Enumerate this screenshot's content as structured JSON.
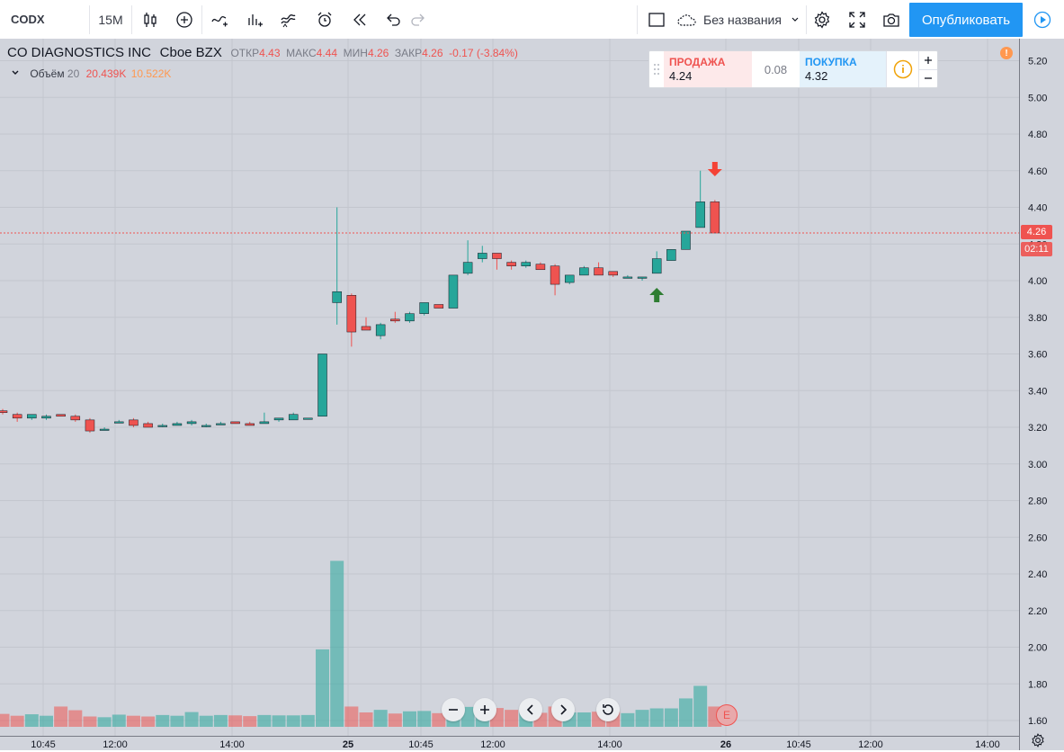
{
  "toolbar": {
    "symbol": "CODX",
    "interval": "15M",
    "layout_name": "Без названия",
    "publish_label": "Опубликовать"
  },
  "legend": {
    "name": "CO DIAGNOSTICS INC",
    "exchange": "Cboe BZX",
    "open_label": "ОТКР",
    "open": "4.43",
    "high_label": "МАКС",
    "high": "4.44",
    "low_label": "МИН",
    "low": "4.26",
    "close_label": "ЗАКР",
    "close": "4.26",
    "change": "-0.17 (-3.84%)",
    "volume_label": "Объём",
    "volume_length": "20",
    "volume_value": "20.439K",
    "volume_ma": "10.522K"
  },
  "trade": {
    "sell_label": "ПРОДАЖА",
    "sell_price": "4.24",
    "spread": "0.08",
    "buy_label": "ПОКУПКА",
    "buy_price": "4.32"
  },
  "price_tags": {
    "last": "4.26",
    "countdown": "02:11"
  },
  "nav_icons": [
    "zoom-out-icon",
    "zoom-in-icon",
    "scroll-left-icon",
    "scroll-right-icon",
    "reset-icon"
  ],
  "earnings_badge": "E",
  "colors": {
    "up": "#26a69a",
    "down": "#ef5350",
    "accent": "#2196f3",
    "bg": "#d1d4dc"
  },
  "chart_data": {
    "type": "candlestick",
    "title": "CO DIAGNOSTICS INC",
    "y_ticks": [
      "5.20",
      "5.00",
      "4.80",
      "4.60",
      "4.40",
      "4.20",
      "4.00",
      "3.80",
      "3.60",
      "3.40",
      "3.20",
      "3.00",
      "2.80",
      "2.60",
      "2.40",
      "2.20",
      "2.00",
      "1.80",
      "1.60"
    ],
    "x_ticks": [
      "10:45",
      "12:00",
      "14:00",
      "25",
      "10:45",
      "12:00",
      "14:00",
      "26",
      "10:45",
      "12:00",
      "14:00"
    ],
    "ylim": [
      1.55,
      5.3
    ],
    "last_price": 4.26,
    "candles": [
      {
        "o": 3.29,
        "h": 3.3,
        "l": 3.27,
        "c": 3.28
      },
      {
        "o": 3.27,
        "h": 3.28,
        "l": 3.23,
        "c": 3.25
      },
      {
        "o": 3.25,
        "h": 3.27,
        "l": 3.24,
        "c": 3.27
      },
      {
        "o": 3.25,
        "h": 3.27,
        "l": 3.24,
        "c": 3.26
      },
      {
        "o": 3.27,
        "h": 3.27,
        "l": 3.26,
        "c": 3.26
      },
      {
        "o": 3.26,
        "h": 3.27,
        "l": 3.23,
        "c": 3.24
      },
      {
        "o": 3.24,
        "h": 3.25,
        "l": 3.17,
        "c": 3.18
      },
      {
        "o": 3.19,
        "h": 3.2,
        "l": 3.19,
        "c": 3.19
      },
      {
        "o": 3.23,
        "h": 3.24,
        "l": 3.23,
        "c": 3.23
      },
      {
        "o": 3.24,
        "h": 3.25,
        "l": 3.2,
        "c": 3.21
      },
      {
        "o": 3.22,
        "h": 3.23,
        "l": 3.2,
        "c": 3.2
      },
      {
        "o": 3.21,
        "h": 3.22,
        "l": 3.2,
        "c": 3.21
      },
      {
        "o": 3.21,
        "h": 3.23,
        "l": 3.21,
        "c": 3.22
      },
      {
        "o": 3.22,
        "h": 3.24,
        "l": 3.21,
        "c": 3.23
      },
      {
        "o": 3.21,
        "h": 3.22,
        "l": 3.2,
        "c": 3.21
      },
      {
        "o": 3.22,
        "h": 3.23,
        "l": 3.22,
        "c": 3.22
      },
      {
        "o": 3.23,
        "h": 3.23,
        "l": 3.22,
        "c": 3.22
      },
      {
        "o": 3.22,
        "h": 3.23,
        "l": 3.21,
        "c": 3.21
      },
      {
        "o": 3.22,
        "h": 3.28,
        "l": 3.22,
        "c": 3.23
      },
      {
        "o": 3.24,
        "h": 3.25,
        "l": 3.23,
        "c": 3.25
      },
      {
        "o": 3.24,
        "h": 3.28,
        "l": 3.24,
        "c": 3.27
      },
      {
        "o": 3.25,
        "h": 3.25,
        "l": 3.25,
        "c": 3.25
      },
      {
        "o": 3.26,
        "h": 3.6,
        "l": 3.26,
        "c": 3.6
      },
      {
        "o": 3.88,
        "h": 4.4,
        "l": 3.76,
        "c": 3.94
      },
      {
        "o": 3.92,
        "h": 3.93,
        "l": 3.64,
        "c": 3.72
      },
      {
        "o": 3.75,
        "h": 3.8,
        "l": 3.73,
        "c": 3.73
      },
      {
        "o": 3.7,
        "h": 3.77,
        "l": 3.68,
        "c": 3.76
      },
      {
        "o": 3.79,
        "h": 3.83,
        "l": 3.77,
        "c": 3.78
      },
      {
        "o": 3.78,
        "h": 3.83,
        "l": 3.77,
        "c": 3.82
      },
      {
        "o": 3.82,
        "h": 3.88,
        "l": 3.81,
        "c": 3.88
      },
      {
        "o": 3.87,
        "h": 3.87,
        "l": 3.85,
        "c": 3.85
      },
      {
        "o": 3.85,
        "h": 4.03,
        "l": 3.85,
        "c": 4.03
      },
      {
        "o": 4.04,
        "h": 4.22,
        "l": 4.03,
        "c": 4.1
      },
      {
        "o": 4.12,
        "h": 4.19,
        "l": 4.1,
        "c": 4.15
      },
      {
        "o": 4.15,
        "h": 4.14,
        "l": 4.06,
        "c": 4.12
      },
      {
        "o": 4.1,
        "h": 4.11,
        "l": 4.06,
        "c": 4.08
      },
      {
        "o": 4.08,
        "h": 4.11,
        "l": 4.07,
        "c": 4.1
      },
      {
        "o": 4.09,
        "h": 4.1,
        "l": 4.06,
        "c": 4.06
      },
      {
        "o": 4.08,
        "h": 4.09,
        "l": 3.92,
        "c": 3.98
      },
      {
        "o": 3.99,
        "h": 4.03,
        "l": 3.98,
        "c": 4.03
      },
      {
        "o": 4.03,
        "h": 4.08,
        "l": 4.03,
        "c": 4.07
      },
      {
        "o": 4.07,
        "h": 4.1,
        "l": 4.03,
        "c": 4.03
      },
      {
        "o": 4.05,
        "h": 4.05,
        "l": 4.02,
        "c": 4.03
      },
      {
        "o": 4.02,
        "h": 4.03,
        "l": 4.02,
        "c": 4.02
      },
      {
        "o": 4.02,
        "h": 4.02,
        "l": 4.0,
        "c": 4.02
      },
      {
        "o": 4.04,
        "h": 4.16,
        "l": 4.04,
        "c": 4.12
      },
      {
        "o": 4.11,
        "h": 4.17,
        "l": 4.11,
        "c": 4.17
      },
      {
        "o": 4.17,
        "h": 4.26,
        "l": 4.17,
        "c": 4.27
      },
      {
        "o": 4.29,
        "h": 4.6,
        "l": 4.29,
        "c": 4.43
      },
      {
        "o": 4.43,
        "h": 4.44,
        "l": 4.26,
        "c": 4.26
      }
    ],
    "volumes": [
      0.35,
      0.3,
      0.34,
      0.3,
      0.55,
      0.45,
      0.28,
      0.26,
      0.33,
      0.3,
      0.28,
      0.32,
      0.3,
      0.4,
      0.3,
      0.32,
      0.31,
      0.29,
      0.32,
      0.31,
      0.31,
      0.32,
      2.1,
      4.5,
      0.55,
      0.39,
      0.46,
      0.36,
      0.42,
      0.43,
      0.37,
      0.55,
      0.54,
      0.43,
      0.51,
      0.46,
      0.52,
      0.38,
      0.55,
      0.39,
      0.39,
      0.41,
      0.41,
      0.37,
      0.46,
      0.5,
      0.5,
      0.77,
      1.11,
      0.55
    ],
    "signals": [
      {
        "type": "buy",
        "index": 45
      },
      {
        "type": "sell",
        "index": 49
      }
    ]
  }
}
